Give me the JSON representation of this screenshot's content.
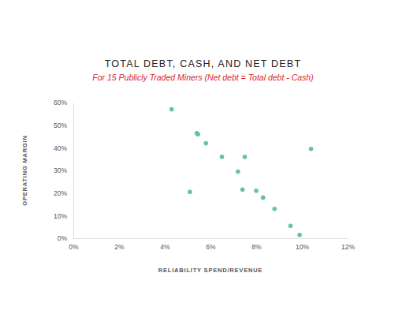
{
  "chart_data": {
    "type": "scatter",
    "title": "TOTAL DEBT, CASH, AND NET DEBT",
    "subtitle": "For 15 Publicly Traded Miners (Net debt = Total debt - Cash)",
    "x_label": "RELIABILITY SPEND/REVENUE",
    "y_label": "OPERATING MARGIN",
    "x": [
      4.3,
      5.4,
      5.45,
      5.8,
      5.1,
      6.5,
      7.2,
      7.4,
      7.5,
      8.0,
      8.3,
      8.8,
      9.5,
      9.9,
      10.4
    ],
    "values": [
      57,
      46.5,
      46,
      42,
      20.5,
      36,
      29.5,
      21.5,
      36,
      21,
      18,
      13,
      5.5,
      1.5,
      39.5
    ],
    "color": "#66c2a2",
    "marker": "circle",
    "xlim": [
      0,
      12
    ],
    "ylim": [
      0,
      60
    ],
    "xticks": [
      {
        "value": 0,
        "label": "0%"
      },
      {
        "value": 2,
        "label": "2%"
      },
      {
        "value": 4,
        "label": "4%"
      },
      {
        "value": 6,
        "label": "6%"
      },
      {
        "value": 8,
        "label": "8%"
      },
      {
        "value": 10,
        "label": "10%"
      },
      {
        "value": 12,
        "label": "12%"
      }
    ],
    "yticks": [
      {
        "value": 0,
        "label": "0%"
      },
      {
        "value": 10,
        "label": "10%"
      },
      {
        "value": 20,
        "label": "20%"
      },
      {
        "value": 30,
        "label": "30%"
      },
      {
        "value": 40,
        "label": "40%"
      },
      {
        "value": 50,
        "label": "50%"
      },
      {
        "value": 60,
        "label": "60%"
      }
    ],
    "grid": false
  }
}
